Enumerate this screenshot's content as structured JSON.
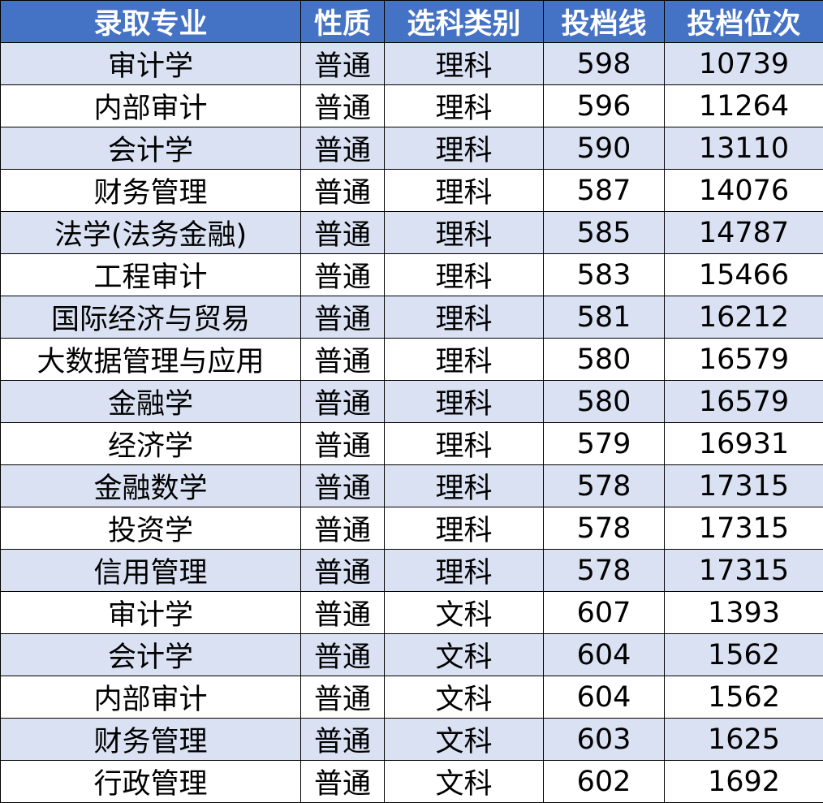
{
  "colors": {
    "header_bg": "#4472C4",
    "header_text": "#FFFFFF",
    "band_row": "#D9E1F2",
    "plain_row": "#FFFFFF"
  },
  "headers": [
    "录取专业",
    "性质",
    "选科类别",
    "投档线",
    "投档位次"
  ],
  "rows": [
    [
      "审计学",
      "普通",
      "理科",
      "598",
      "10739"
    ],
    [
      "内部审计",
      "普通",
      "理科",
      "596",
      "11264"
    ],
    [
      "会计学",
      "普通",
      "理科",
      "590",
      "13110"
    ],
    [
      "财务管理",
      "普通",
      "理科",
      "587",
      "14076"
    ],
    [
      "法学(法务金融)",
      "普通",
      "理科",
      "585",
      "14787"
    ],
    [
      "工程审计",
      "普通",
      "理科",
      "583",
      "15466"
    ],
    [
      "国际经济与贸易",
      "普通",
      "理科",
      "581",
      "16212"
    ],
    [
      "大数据管理与应用",
      "普通",
      "理科",
      "580",
      "16579"
    ],
    [
      "金融学",
      "普通",
      "理科",
      "580",
      "16579"
    ],
    [
      "经济学",
      "普通",
      "理科",
      "579",
      "16931"
    ],
    [
      "金融数学",
      "普通",
      "理科",
      "578",
      "17315"
    ],
    [
      "投资学",
      "普通",
      "理科",
      "578",
      "17315"
    ],
    [
      "信用管理",
      "普通",
      "理科",
      "578",
      "17315"
    ],
    [
      "审计学",
      "普通",
      "文科",
      "607",
      "1393"
    ],
    [
      "会计学",
      "普通",
      "文科",
      "604",
      "1562"
    ],
    [
      "内部审计",
      "普通",
      "文科",
      "604",
      "1562"
    ],
    [
      "财务管理",
      "普通",
      "文科",
      "603",
      "1625"
    ],
    [
      "行政管理",
      "普通",
      "文科",
      "602",
      "1692"
    ]
  ]
}
